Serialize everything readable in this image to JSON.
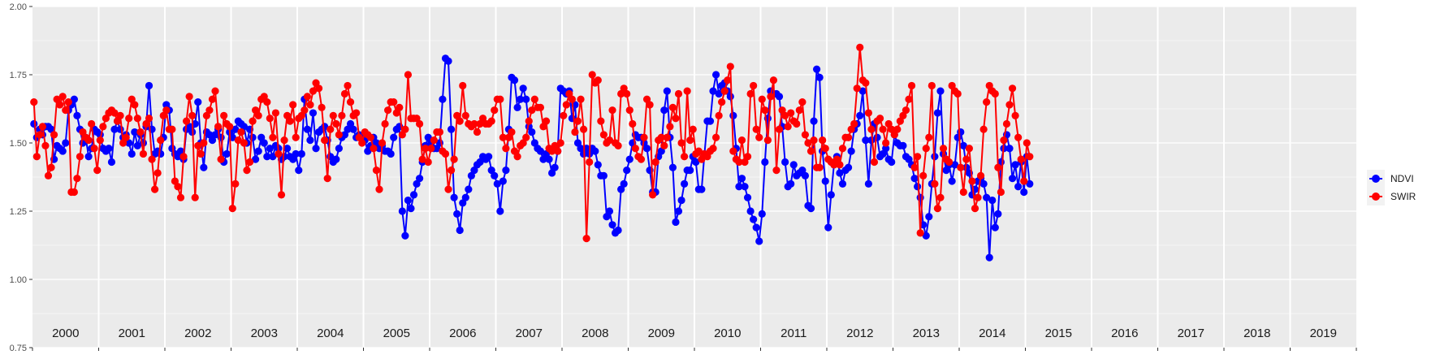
{
  "chart_data": {
    "type": "line",
    "ylim": [
      0.75,
      2.0
    ],
    "y_ticks": [
      "0.75",
      "1.00",
      "1.25",
      "1.50",
      "1.75",
      "2.00"
    ],
    "y_tick_values": [
      0.75,
      1.0,
      1.25,
      1.5,
      1.75,
      2.0
    ],
    "years": [
      "2000",
      "2001",
      "2002",
      "2003",
      "2004",
      "2005",
      "2006",
      "2007",
      "2008",
      "2009",
      "2010",
      "2011",
      "2012",
      "2013",
      "2014",
      "2015",
      "2016",
      "2017",
      "2018",
      "2019"
    ],
    "samples_per_year": 23,
    "grid": true,
    "legend_position": "right",
    "series": [
      {
        "name": "NDVI",
        "color": "#0000ff",
        "values": [
          1.57,
          1.52,
          1.55,
          1.53,
          1.56,
          1.56,
          1.55,
          1.44,
          1.49,
          1.48,
          1.47,
          1.5,
          1.62,
          1.64,
          1.66,
          1.6,
          1.55,
          1.5,
          1.52,
          1.45,
          1.48,
          1.55,
          1.54,
          1.53,
          1.48,
          1.47,
          1.48,
          1.43,
          1.55,
          1.58,
          1.55,
          1.52,
          1.53,
          1.5,
          1.46,
          1.54,
          1.49,
          1.53,
          1.5,
          1.56,
          1.71,
          1.55,
          1.46,
          1.47,
          1.46,
          1.52,
          1.64,
          1.62,
          1.48,
          1.46,
          1.45,
          1.47,
          1.44,
          1.55,
          1.56,
          1.54,
          1.57,
          1.65,
          1.5,
          1.41,
          1.54,
          1.53,
          1.51,
          1.53,
          1.55,
          1.52,
          1.43,
          1.46,
          1.54,
          1.52,
          1.55,
          1.58,
          1.57,
          1.56,
          1.5,
          1.55,
          1.52,
          1.44,
          1.47,
          1.52,
          1.5,
          1.45,
          1.48,
          1.45,
          1.49,
          1.48,
          1.44,
          1.45,
          1.48,
          1.45,
          1.44,
          1.46,
          1.4,
          1.46,
          1.66,
          1.55,
          1.51,
          1.61,
          1.48,
          1.54,
          1.55,
          1.56,
          1.51,
          1.45,
          1.43,
          1.44,
          1.48,
          1.52,
          1.53,
          1.55,
          1.57,
          1.55,
          1.52,
          1.53,
          1.52,
          1.51,
          1.47,
          1.49,
          1.52,
          1.5,
          1.48,
          1.49,
          1.47,
          1.47,
          1.46,
          1.52,
          1.55,
          1.56,
          1.25,
          1.16,
          1.29,
          1.26,
          1.31,
          1.35,
          1.37,
          1.43,
          1.49,
          1.52,
          1.5,
          1.48,
          1.48,
          1.5,
          1.66,
          1.81,
          1.8,
          1.55,
          1.3,
          1.24,
          1.18,
          1.28,
          1.3,
          1.33,
          1.38,
          1.4,
          1.42,
          1.43,
          1.45,
          1.44,
          1.45,
          1.4,
          1.38,
          1.35,
          1.25,
          1.36,
          1.4,
          1.55,
          1.74,
          1.73,
          1.63,
          1.66,
          1.7,
          1.66,
          1.56,
          1.54,
          1.5,
          1.48,
          1.47,
          1.44,
          1.46,
          1.44,
          1.39,
          1.41,
          1.47,
          1.7,
          1.69,
          1.68,
          1.69,
          1.59,
          1.64,
          1.5,
          1.48,
          1.46,
          1.48,
          1.46,
          1.48,
          1.47,
          1.42,
          1.38,
          1.38,
          1.23,
          1.25,
          1.2,
          1.17,
          1.18,
          1.33,
          1.35,
          1.4,
          1.44,
          1.5,
          1.53,
          1.52,
          1.52,
          1.5,
          1.48,
          1.4,
          1.32,
          1.32,
          1.45,
          1.47,
          1.62,
          1.69,
          1.52,
          1.41,
          1.21,
          1.25,
          1.29,
          1.35,
          1.4,
          1.4,
          1.45,
          1.43,
          1.33,
          1.33,
          1.46,
          1.58,
          1.58,
          1.69,
          1.75,
          1.68,
          1.71,
          1.72,
          1.69,
          1.67,
          1.6,
          1.48,
          1.34,
          1.37,
          1.34,
          1.3,
          1.25,
          1.22,
          1.19,
          1.14,
          1.24,
          1.43,
          1.59,
          1.69,
          1.68,
          1.68,
          1.67,
          1.56,
          1.43,
          1.34,
          1.35,
          1.42,
          1.38,
          1.39,
          1.4,
          1.38,
          1.27,
          1.26,
          1.58,
          1.77,
          1.74,
          1.47,
          1.36,
          1.19,
          1.31,
          1.42,
          1.45,
          1.39,
          1.35,
          1.4,
          1.41,
          1.47,
          1.55,
          1.57,
          1.6,
          1.69,
          1.51,
          1.35,
          1.51,
          1.57,
          1.52,
          1.45,
          1.46,
          1.48,
          1.44,
          1.43,
          1.53,
          1.5,
          1.49,
          1.49,
          1.45,
          1.44,
          1.42,
          1.37,
          1.34,
          1.3,
          1.2,
          1.16,
          1.23,
          1.35,
          1.45,
          1.61,
          1.69,
          1.46,
          1.4,
          1.42,
          1.36,
          1.42,
          1.52,
          1.54,
          1.49,
          1.41,
          1.39,
          1.31,
          1.33,
          1.36,
          1.37,
          1.35,
          1.3,
          1.08,
          1.29,
          1.19,
          1.24,
          1.43,
          1.48,
          1.53,
          1.48,
          1.37,
          1.42,
          1.34,
          1.43,
          1.32,
          1.45,
          1.35
        ]
      },
      {
        "name": "SWIR",
        "color": "#ff0000",
        "values": [
          1.65,
          1.45,
          1.53,
          1.56,
          1.49,
          1.38,
          1.41,
          1.53,
          1.66,
          1.64,
          1.67,
          1.62,
          1.65,
          1.32,
          1.32,
          1.37,
          1.45,
          1.54,
          1.52,
          1.51,
          1.57,
          1.48,
          1.4,
          1.51,
          1.56,
          1.59,
          1.61,
          1.62,
          1.61,
          1.58,
          1.6,
          1.5,
          1.52,
          1.59,
          1.66,
          1.64,
          1.59,
          1.54,
          1.46,
          1.57,
          1.59,
          1.44,
          1.33,
          1.39,
          1.51,
          1.6,
          1.62,
          1.55,
          1.55,
          1.36,
          1.34,
          1.3,
          1.45,
          1.58,
          1.67,
          1.6,
          1.3,
          1.49,
          1.46,
          1.5,
          1.6,
          1.62,
          1.66,
          1.69,
          1.56,
          1.44,
          1.6,
          1.57,
          1.56,
          1.26,
          1.35,
          1.51,
          1.54,
          1.5,
          1.4,
          1.43,
          1.58,
          1.62,
          1.6,
          1.66,
          1.67,
          1.65,
          1.59,
          1.52,
          1.61,
          1.46,
          1.31,
          1.51,
          1.6,
          1.58,
          1.64,
          1.52,
          1.59,
          1.6,
          1.62,
          1.67,
          1.64,
          1.69,
          1.72,
          1.7,
          1.63,
          1.51,
          1.37,
          1.55,
          1.6,
          1.57,
          1.53,
          1.6,
          1.68,
          1.71,
          1.65,
          1.6,
          1.61,
          1.52,
          1.5,
          1.54,
          1.53,
          1.52,
          1.48,
          1.4,
          1.33,
          1.5,
          1.57,
          1.62,
          1.65,
          1.65,
          1.61,
          1.63,
          1.53,
          1.55,
          1.75,
          1.59,
          1.59,
          1.59,
          1.57,
          1.44,
          1.48,
          1.43,
          1.48,
          1.51,
          1.54,
          1.54,
          1.47,
          1.46,
          1.33,
          1.4,
          1.44,
          1.6,
          1.58,
          1.71,
          1.6,
          1.57,
          1.56,
          1.57,
          1.54,
          1.57,
          1.59,
          1.57,
          1.57,
          1.58,
          1.62,
          1.66,
          1.66,
          1.52,
          1.48,
          1.52,
          1.54,
          1.47,
          1.45,
          1.49,
          1.5,
          1.52,
          1.58,
          1.62,
          1.66,
          1.63,
          1.63,
          1.56,
          1.58,
          1.48,
          1.47,
          1.49,
          1.47,
          1.5,
          1.6,
          1.64,
          1.68,
          1.66,
          1.54,
          1.58,
          1.66,
          1.55,
          1.15,
          1.43,
          1.75,
          1.72,
          1.73,
          1.58,
          1.53,
          1.5,
          1.51,
          1.62,
          1.5,
          1.49,
          1.68,
          1.7,
          1.68,
          1.62,
          1.57,
          1.48,
          1.45,
          1.44,
          1.52,
          1.66,
          1.64,
          1.31,
          1.43,
          1.51,
          1.52,
          1.49,
          1.52,
          1.56,
          1.63,
          1.59,
          1.68,
          1.5,
          1.45,
          1.69,
          1.51,
          1.55,
          1.46,
          1.47,
          1.44,
          1.46,
          1.45,
          1.47,
          1.48,
          1.52,
          1.6,
          1.65,
          1.69,
          1.73,
          1.78,
          1.47,
          1.44,
          1.43,
          1.51,
          1.43,
          1.45,
          1.68,
          1.71,
          1.55,
          1.52,
          1.66,
          1.62,
          1.51,
          1.67,
          1.73,
          1.4,
          1.55,
          1.62,
          1.6,
          1.56,
          1.61,
          1.58,
          1.57,
          1.62,
          1.65,
          1.53,
          1.5,
          1.47,
          1.51,
          1.41,
          1.41,
          1.51,
          1.48,
          1.44,
          1.43,
          1.42,
          1.44,
          1.42,
          1.48,
          1.52,
          1.52,
          1.55,
          1.57,
          1.7,
          1.85,
          1.73,
          1.72,
          1.61,
          1.55,
          1.43,
          1.58,
          1.59,
          1.55,
          1.5,
          1.57,
          1.55,
          1.53,
          1.55,
          1.58,
          1.6,
          1.62,
          1.66,
          1.71,
          1.41,
          1.45,
          1.17,
          1.38,
          1.48,
          1.52,
          1.71,
          1.35,
          1.26,
          1.3,
          1.48,
          1.44,
          1.43,
          1.71,
          1.69,
          1.68,
          1.41,
          1.32,
          1.44,
          1.48,
          1.36,
          1.26,
          1.3,
          1.38,
          1.55,
          1.65,
          1.71,
          1.69,
          1.68,
          1.41,
          1.32,
          1.51,
          1.57,
          1.64,
          1.7,
          1.6,
          1.52,
          1.44,
          1.36,
          1.5,
          1.45
        ]
      }
    ]
  }
}
